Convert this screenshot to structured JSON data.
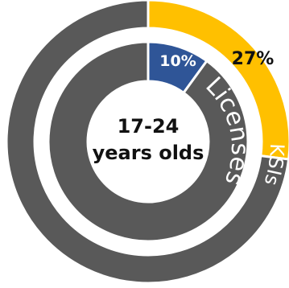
{
  "chart_data": {
    "type": "pie",
    "title": "",
    "center_label": [
      "17-24",
      "years olds"
    ],
    "rings": [
      {
        "name": "KSIs",
        "position": "outer",
        "highlight_value": 27,
        "highlight_label": "27%",
        "highlight_color": "#FFC000",
        "rest_color": "#595959"
      },
      {
        "name": "Licenses",
        "position": "inner",
        "highlight_value": 10,
        "highlight_label": "10%",
        "highlight_color": "#2F5597",
        "rest_color": "#595959"
      }
    ]
  }
}
